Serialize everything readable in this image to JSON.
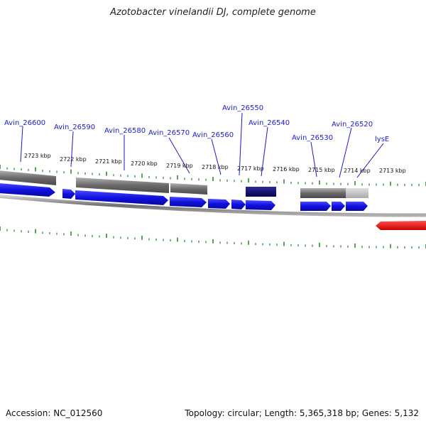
{
  "title": "Azotobacter vinelandii DJ, complete genome",
  "footer": {
    "accession": "Accession: NC_012560",
    "summary": "Topology: circular; Length: 5,365,318 bp; Genes: 5,132"
  },
  "ruler_labels": [
    "2723 kbp",
    "2722 kbp",
    "2721 kbp",
    "2720 kbp",
    "2719 kbp",
    "2718 kbp",
    "2717 kbp",
    "2716 kbp",
    "2715 kbp",
    "2714 kbp",
    "2713 kbp"
  ],
  "gene_labels": [
    "Avin_26600",
    "Avin_26590",
    "Avin_26580",
    "Avin_26570",
    "Avin_26560",
    "Avin_26550",
    "Avin_26540",
    "Avin_26530",
    "Avin_26520",
    "lysE"
  ],
  "colors": {
    "gene_blue": "#1010e0",
    "label_blue": "#1a1ad0",
    "tick_green": "#1a8a1a",
    "grey_bar": "#7a7a7a",
    "navy_bar": "#0b0b7a",
    "highlight_red": "#e81010"
  }
}
